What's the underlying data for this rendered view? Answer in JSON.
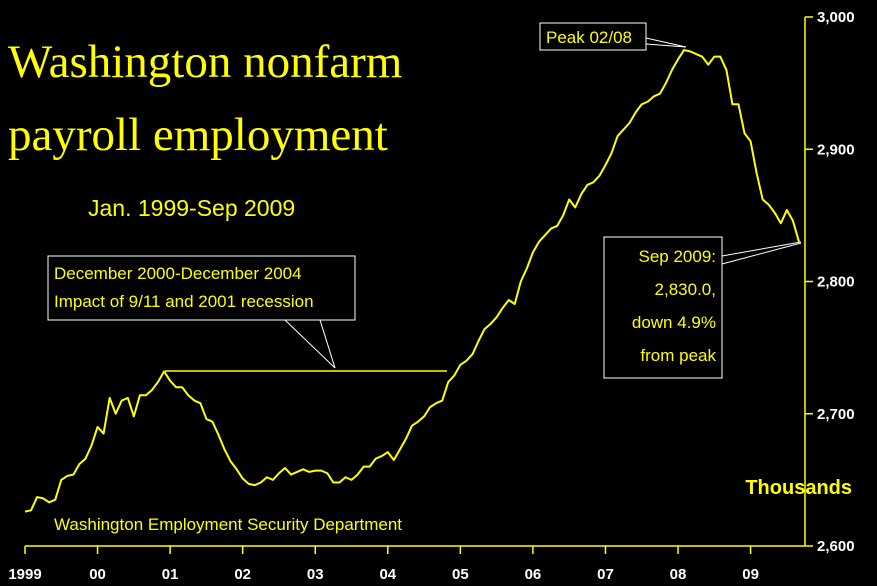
{
  "chart_data": {
    "type": "line",
    "title": [
      "Washington nonfarm",
      "payroll employment"
    ],
    "subtitle": "Jan. 1999-Sep 2009",
    "ylabel": "Thousands",
    "source": "Washington Employment Security Department",
    "annotations": [
      {
        "text": [
          "Peak 02/08"
        ]
      },
      {
        "text": [
          "December 2000-December 2004",
          "Impact of 9/11 and 2001 recession"
        ]
      },
      {
        "text": [
          "Sep 2009:",
          "2,830.0,",
          "down 4.9%",
          "from peak"
        ]
      }
    ],
    "color": "#ffff00",
    "xlim": [
      1999,
      2009.75
    ],
    "xticks": [
      {
        "value": 1999,
        "label": "1999"
      },
      {
        "value": 2000,
        "label": "00"
      },
      {
        "value": 2001,
        "label": "01"
      },
      {
        "value": 2002,
        "label": "02"
      },
      {
        "value": 2003,
        "label": "03"
      },
      {
        "value": 2004,
        "label": "04"
      },
      {
        "value": 2005,
        "label": "05"
      },
      {
        "value": 2006,
        "label": "06"
      },
      {
        "value": 2007,
        "label": "07"
      },
      {
        "value": 2008,
        "label": "08"
      },
      {
        "value": 2009,
        "label": "09"
      }
    ],
    "ylim": [
      2600,
      3000
    ],
    "yticks": [
      {
        "value": 2600,
        "label": "2,600"
      },
      {
        "value": 2700,
        "label": "2,700"
      },
      {
        "value": 2800,
        "label": "2,800"
      },
      {
        "value": 2900,
        "label": "2,900"
      },
      {
        "value": 3000,
        "label": "3,000"
      }
    ],
    "x": [
      1999,
      1999.083,
      1999.167,
      1999.25,
      1999.333,
      1999.417,
      1999.5,
      1999.583,
      1999.667,
      1999.75,
      1999.833,
      1999.917,
      2000,
      2000.083,
      2000.167,
      2000.25,
      2000.333,
      2000.417,
      2000.5,
      2000.583,
      2000.667,
      2000.75,
      2000.833,
      2000.917,
      2001,
      2001.083,
      2001.167,
      2001.25,
      2001.333,
      2001.417,
      2001.5,
      2001.583,
      2001.667,
      2001.75,
      2001.833,
      2001.917,
      2002,
      2002.083,
      2002.167,
      2002.25,
      2002.333,
      2002.417,
      2002.5,
      2002.583,
      2002.667,
      2002.75,
      2002.833,
      2002.917,
      2003,
      2003.083,
      2003.167,
      2003.25,
      2003.333,
      2003.417,
      2003.5,
      2003.583,
      2003.667,
      2003.75,
      2003.833,
      2003.917,
      2004,
      2004.083,
      2004.167,
      2004.25,
      2004.333,
      2004.417,
      2004.5,
      2004.583,
      2004.667,
      2004.75,
      2004.833,
      2004.917,
      2005,
      2005.083,
      2005.167,
      2005.25,
      2005.333,
      2005.417,
      2005.5,
      2005.583,
      2005.667,
      2005.75,
      2005.833,
      2005.917,
      2006,
      2006.083,
      2006.167,
      2006.25,
      2006.333,
      2006.417,
      2006.5,
      2006.583,
      2006.667,
      2006.75,
      2006.833,
      2006.917,
      2007,
      2007.083,
      2007.167,
      2007.25,
      2007.333,
      2007.417,
      2007.5,
      2007.583,
      2007.667,
      2007.75,
      2007.833,
      2007.917,
      2008,
      2008.083,
      2008.167,
      2008.25,
      2008.333,
      2008.417,
      2008.5,
      2008.583,
      2008.667,
      2008.75,
      2008.833,
      2008.917,
      2009,
      2009.083,
      2009.167,
      2009.25,
      2009.333,
      2009.417,
      2009.5,
      2009.583,
      2009.667
    ],
    "values": [
      2626,
      2627,
      2637,
      2636,
      2633,
      2635,
      2650,
      2653,
      2654,
      2662,
      2666,
      2676,
      2690,
      2685,
      2712,
      2700,
      2710,
      2712,
      2698,
      2714,
      2714,
      2718,
      2724,
      2732,
      2725,
      2720,
      2720,
      2714,
      2710,
      2708,
      2696,
      2694,
      2684,
      2673,
      2664,
      2658,
      2651,
      2647,
      2646,
      2648,
      2652,
      2650,
      2655,
      2659,
      2654,
      2656,
      2658,
      2656,
      2657,
      2657,
      2655,
      2648,
      2648,
      2652,
      2650,
      2654,
      2660,
      2660,
      2666,
      2668,
      2671,
      2665,
      2673,
      2681,
      2691,
      2694,
      2698,
      2705,
      2708,
      2710,
      2724,
      2729,
      2737,
      2740,
      2745,
      2755,
      2764,
      2768,
      2773,
      2780,
      2786,
      2783,
      2800,
      2810,
      2822,
      2830,
      2835,
      2840,
      2842,
      2850,
      2862,
      2856,
      2866,
      2873,
      2875,
      2880,
      2888,
      2897,
      2910,
      2915,
      2920,
      2928,
      2934,
      2936,
      2940,
      2942,
      2950,
      2960,
      2968,
      2975,
      2974,
      2972,
      2970,
      2964,
      2970,
      2970,
      2960,
      2934,
      2934,
      2912,
      2906,
      2882,
      2862,
      2858,
      2852,
      2844,
      2854,
      2846,
      2830
    ]
  }
}
